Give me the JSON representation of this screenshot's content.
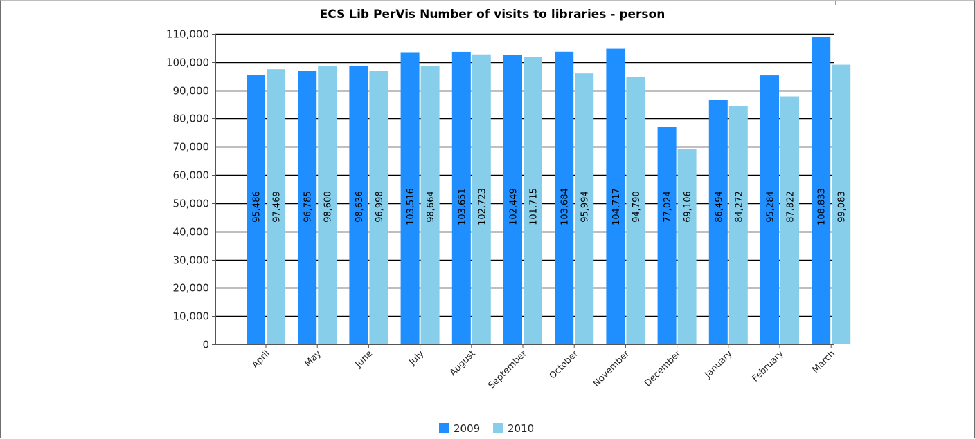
{
  "chart_data": {
    "type": "bar",
    "title": "ECS Lib PerVis Number of visits to libraries - person",
    "xlabel": "",
    "ylabel": "",
    "categories": [
      "April",
      "May",
      "June",
      "July",
      "August",
      "September",
      "October",
      "November",
      "December",
      "January",
      "February",
      "March"
    ],
    "series": [
      {
        "name": "2009",
        "color": "#1f8fff",
        "values": [
          95486,
          96785,
          98636,
          103516,
          103651,
          102449,
          103684,
          104717,
          77024,
          86494,
          95284,
          108833
        ],
        "labels": [
          "95,486",
          "96,785",
          "98,636",
          "103,516",
          "103,651",
          "102,449",
          "103,684",
          "104,717",
          "77,024",
          "86,494",
          "95,284",
          "108,833"
        ]
      },
      {
        "name": "2010",
        "color": "#87ceeb",
        "values": [
          97469,
          98600,
          96998,
          98664,
          102723,
          101715,
          95994,
          94790,
          69106,
          84272,
          87822,
          99083
        ],
        "labels": [
          "97,469",
          "98,600",
          "96,998",
          "98,664",
          "102,723",
          "101,715",
          "95,994",
          "94,790",
          "69,106",
          "84,272",
          "87,822",
          "99,083"
        ]
      }
    ],
    "ylim": [
      0,
      110000
    ],
    "yticks": [
      0,
      10000,
      20000,
      30000,
      40000,
      50000,
      60000,
      70000,
      80000,
      90000,
      100000,
      110000
    ],
    "ytick_labels": [
      "0",
      "10,000",
      "20,000",
      "30,000",
      "40,000",
      "50,000",
      "60,000",
      "70,000",
      "80,000",
      "90,000",
      "100,000",
      "110,000"
    ],
    "grid": true,
    "legend_position": "bottom-center"
  }
}
